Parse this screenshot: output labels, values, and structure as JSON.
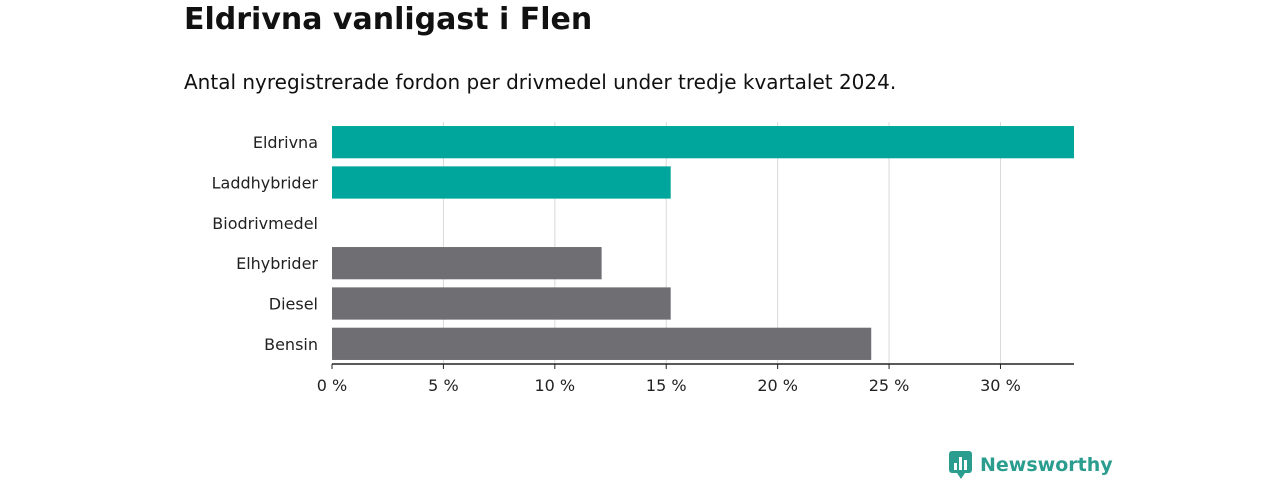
{
  "header": {
    "title": "Eldrivna vanligast i Flen",
    "subtitle": "Antal nyregistrerade fordon per drivmedel under tredje kvartalet 2024."
  },
  "chart_data": {
    "type": "bar",
    "orientation": "horizontal",
    "categories": [
      "Eldrivna",
      "Laddhybrider",
      "Biodrivmedel",
      "Elhybrider",
      "Diesel",
      "Bensin"
    ],
    "values": [
      33.3,
      15.2,
      0,
      12.1,
      15.2,
      24.2
    ],
    "bar_colors": [
      "#00a59b",
      "#00a59b",
      "#00a59b",
      "#6f6e73",
      "#6f6e73",
      "#6f6e73"
    ],
    "xlim": [
      0,
      33.3
    ],
    "xticks": [
      0,
      5,
      10,
      15,
      20,
      25,
      30
    ],
    "xtick_labels": [
      "0 %",
      "5 %",
      "10 %",
      "15 %",
      "20 %",
      "25 %",
      "30 %"
    ],
    "grid": true,
    "xlabel": "",
    "ylabel": ""
  },
  "brand": {
    "name": "Newsworthy",
    "icon": "newsworthy-logo-icon",
    "color": "#2a9d8f"
  }
}
